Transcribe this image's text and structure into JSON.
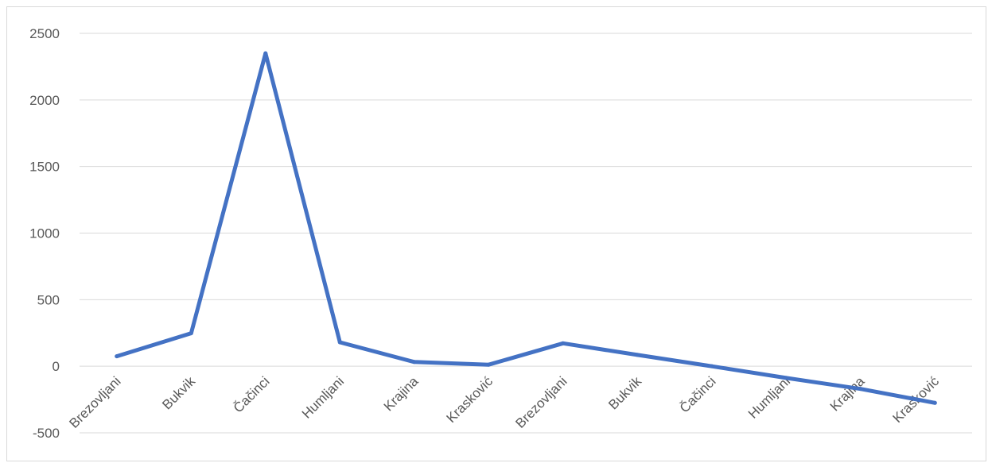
{
  "chart_data": {
    "type": "line",
    "title": "",
    "xlabel": "",
    "ylabel": "",
    "categories": [
      "Brezovljani",
      "Bukvik",
      "Čačinci",
      "Humljani",
      "Krajina",
      "Krasković",
      "Brezovljani",
      "Bukvik",
      "Čačinci",
      "Humljani",
      "Krajina",
      "Krasković"
    ],
    "series": [
      {
        "values": [
          75,
          248,
          2350,
          180,
          32,
          12,
          172,
          85,
          0,
          -88,
          -170,
          -275
        ],
        "color": "#4472c4"
      }
    ],
    "ylim": [
      -500,
      2500
    ],
    "yticks": [
      -500,
      0,
      500,
      1000,
      1500,
      2000,
      2500
    ],
    "grid": true,
    "legend": "none"
  }
}
